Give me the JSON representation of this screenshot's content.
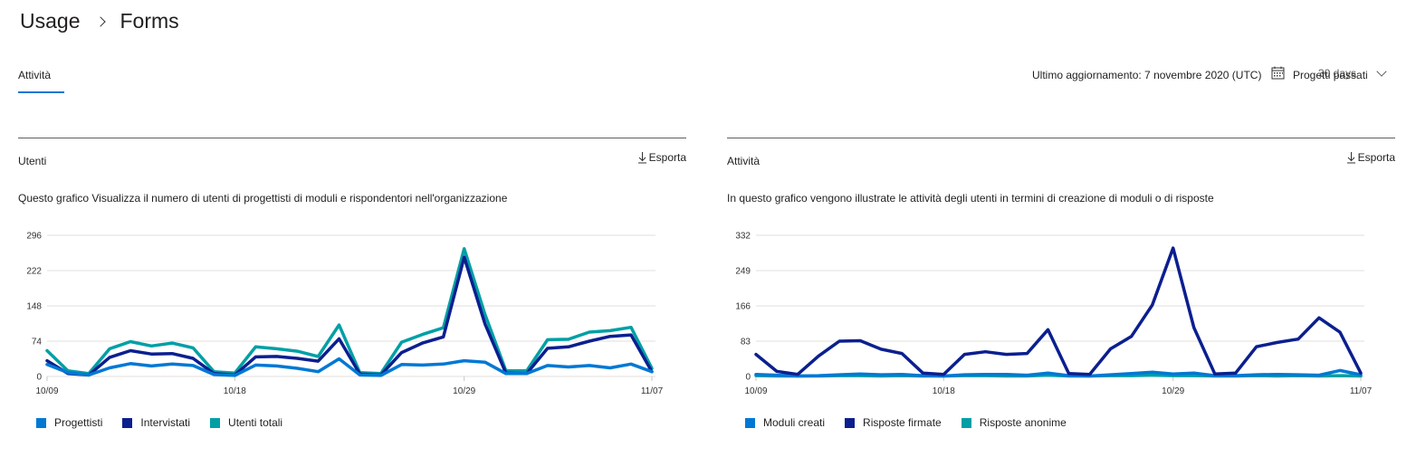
{
  "breadcrumb": {
    "parent": "Usage",
    "current": "Forms"
  },
  "tabs": [
    {
      "label": "Attività",
      "active": true
    }
  ],
  "header": {
    "last_updated": "Ultimo aggiornamento: 7 novembre 2020 (UTC)",
    "period_label": "Progetti passati",
    "period_value": "30 days"
  },
  "colors": {
    "accent": "#0078d4",
    "series_light_blue": "#0078d4",
    "series_dark_blue": "#0b1f8f",
    "series_teal": "#009fa6"
  },
  "panels": [
    {
      "title": "Utenti",
      "export_label": "Esporta",
      "description": "Questo grafico Visualizza il numero di utenti di progettisti di moduli e rispondentori nell'organizzazione",
      "legend": [
        "Progettisti",
        "Intervistati",
        "Utenti totali"
      ]
    },
    {
      "title": "Attività",
      "export_label": "Esporta",
      "description": "In questo grafico vengono illustrate le attività degli utenti in termini di creazione di moduli o di risposte",
      "legend": [
        "Moduli creati",
        "Risposte firmate",
        "Risposte anonime"
      ]
    }
  ],
  "chart_data": [
    {
      "type": "line",
      "x_labels": [
        "10/09",
        "10/18",
        "10/29",
        "11/07"
      ],
      "x_label_positions": [
        0,
        9,
        20,
        29
      ],
      "yticks": [
        0,
        74,
        148,
        222,
        296
      ],
      "ylim": [
        0,
        296
      ],
      "grid": true,
      "legend_position": "bottom-left",
      "series": [
        {
          "name": "Progettisti",
          "color": "#0078d4",
          "values": [
            25,
            8,
            3,
            18,
            27,
            22,
            26,
            23,
            4,
            2,
            24,
            22,
            17,
            10,
            37,
            3,
            2,
            25,
            24,
            26,
            33,
            30,
            6,
            6,
            23,
            20,
            23,
            18,
            26,
            10
          ]
        },
        {
          "name": "Intervistati",
          "color": "#0b1f8f",
          "values": [
            33,
            6,
            3,
            40,
            54,
            47,
            48,
            38,
            6,
            3,
            41,
            42,
            38,
            32,
            79,
            5,
            3,
            50,
            70,
            83,
            250,
            110,
            7,
            6,
            59,
            62,
            74,
            84,
            87,
            10
          ]
        },
        {
          "name": "Utenti totali",
          "color": "#009fa6",
          "values": [
            54,
            12,
            6,
            58,
            73,
            64,
            70,
            60,
            10,
            7,
            62,
            58,
            53,
            42,
            108,
            8,
            6,
            72,
            88,
            102,
            268,
            130,
            12,
            12,
            77,
            78,
            93,
            96,
            103,
            17
          ]
        }
      ]
    },
    {
      "type": "line",
      "x_labels": [
        "10/09",
        "10/18",
        "10/29",
        "11/07"
      ],
      "x_label_positions": [
        0,
        9,
        20,
        29
      ],
      "yticks": [
        0,
        83,
        166,
        249,
        332
      ],
      "ylim": [
        0,
        332
      ],
      "grid": true,
      "legend_position": "bottom-left",
      "series": [
        {
          "name": "Moduli creati",
          "color": "#0078d4",
          "values": [
            5,
            3,
            1,
            2,
            4,
            6,
            4,
            5,
            2,
            1,
            4,
            5,
            5,
            3,
            8,
            2,
            1,
            4,
            7,
            10,
            6,
            8,
            2,
            2,
            4,
            5,
            4,
            3,
            14,
            4
          ]
        },
        {
          "name": "Risposte firmate",
          "color": "#0b1f8f",
          "values": [
            52,
            12,
            5,
            48,
            83,
            84,
            64,
            54,
            8,
            5,
            52,
            58,
            52,
            54,
            110,
            7,
            5,
            65,
            94,
            168,
            302,
            115,
            6,
            8,
            70,
            80,
            88,
            138,
            104,
            8
          ]
        },
        {
          "name": "Risposte anonime",
          "color": "#009fa6",
          "values": [
            2,
            1,
            1,
            1,
            2,
            2,
            1,
            2,
            1,
            1,
            2,
            2,
            1,
            1,
            3,
            1,
            1,
            2,
            2,
            3,
            2,
            2,
            1,
            1,
            2,
            1,
            2,
            1,
            2,
            1
          ]
        }
      ]
    }
  ]
}
